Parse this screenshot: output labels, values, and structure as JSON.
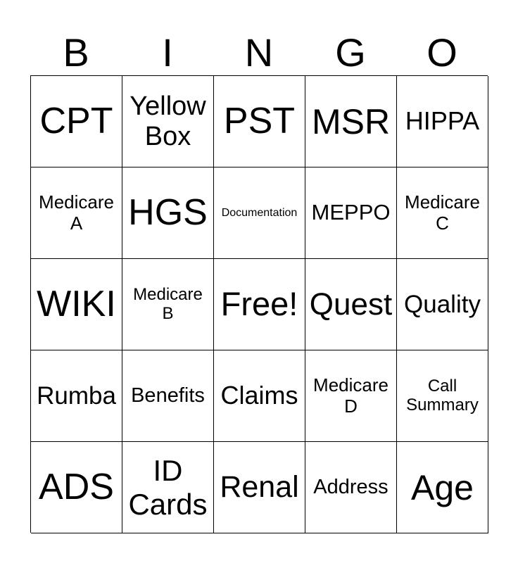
{
  "header": [
    "B",
    "I",
    "N",
    "G",
    "O"
  ],
  "cells": [
    "CPT",
    "Yellow\nBox",
    "PST",
    "MSR",
    "HIPPA",
    "Medicare\nA",
    "HGS",
    "Documentation",
    "MEPPO",
    "Medicare\nC",
    "WIKI",
    "Medicare\nB",
    "Free!",
    "Quest",
    "Quality",
    "Rumba",
    "Benefits",
    "Claims",
    "Medicare\nD",
    "Call\nSummary",
    "ADS",
    "ID\nCards",
    "Renal",
    "Address",
    "Age"
  ]
}
